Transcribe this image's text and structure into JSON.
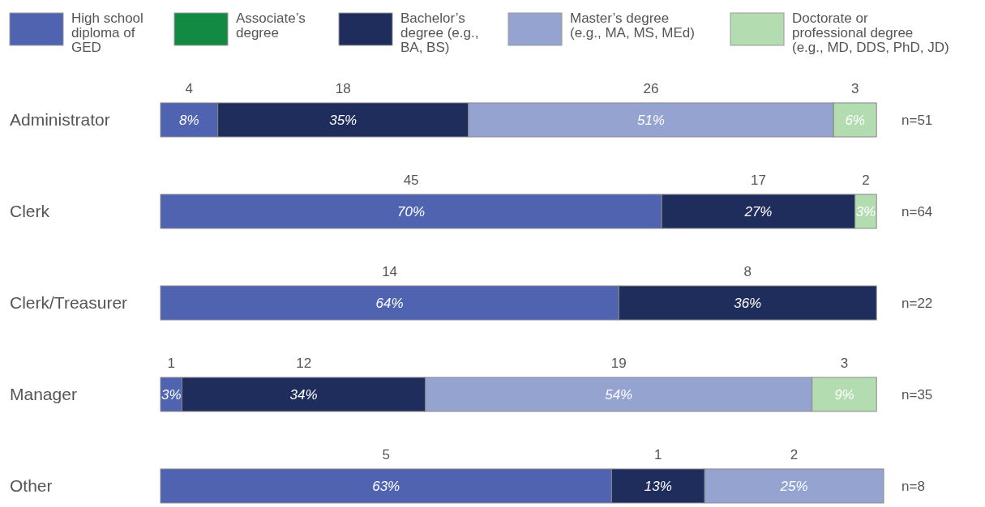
{
  "chart_data": {
    "type": "bar",
    "orientation": "horizontal",
    "stacked": true,
    "legend": "top",
    "categories": [
      "Administrator",
      "Clerk",
      "Clerk/Treasurer",
      "Manager",
      "Other"
    ],
    "series": [
      {
        "name": "High school diploma of GED",
        "color": "#4f63b0",
        "values": [
          8,
          70,
          64,
          3,
          63
        ],
        "value_labels": [
          "8%",
          "70%",
          "64%",
          "3%",
          "63%"
        ]
      },
      {
        "name": "Associate’s degree",
        "color": "#138a43",
        "values": [
          null,
          null,
          null,
          null,
          null
        ]
      },
      {
        "name": "Bachelor’s degree (e.g., BA, BS)",
        "color": "#1f2d5c",
        "values": [
          35,
          27,
          36,
          34,
          13
        ],
        "value_labels": [
          "35%",
          "27%",
          "36%",
          "34%",
          "13%"
        ]
      },
      {
        "name": "Master’s degree (e.g., MA, MS, MEd)",
        "color": "#95a3d1",
        "values": [
          51,
          null,
          null,
          54,
          25
        ],
        "value_labels": [
          "51%",
          null,
          null,
          "54%",
          "25%"
        ]
      },
      {
        "name": "Doctorate or professional degree (e.g., MD, DDS, PhD, JD)",
        "color": "#b3dcb0",
        "values": [
          6,
          3,
          null,
          9,
          null
        ],
        "value_labels": [
          "6%",
          "3%",
          null,
          "9%",
          null
        ]
      }
    ],
    "annotations": [
      "4",
      "18",
      "26",
      "3",
      "n=51",
      "45",
      "17",
      "2",
      "n=64",
      "14",
      "8",
      "n=22",
      "1",
      "12",
      "19",
      "3",
      "n=35",
      "5",
      "1",
      "2",
      "n=8"
    ]
  }
}
